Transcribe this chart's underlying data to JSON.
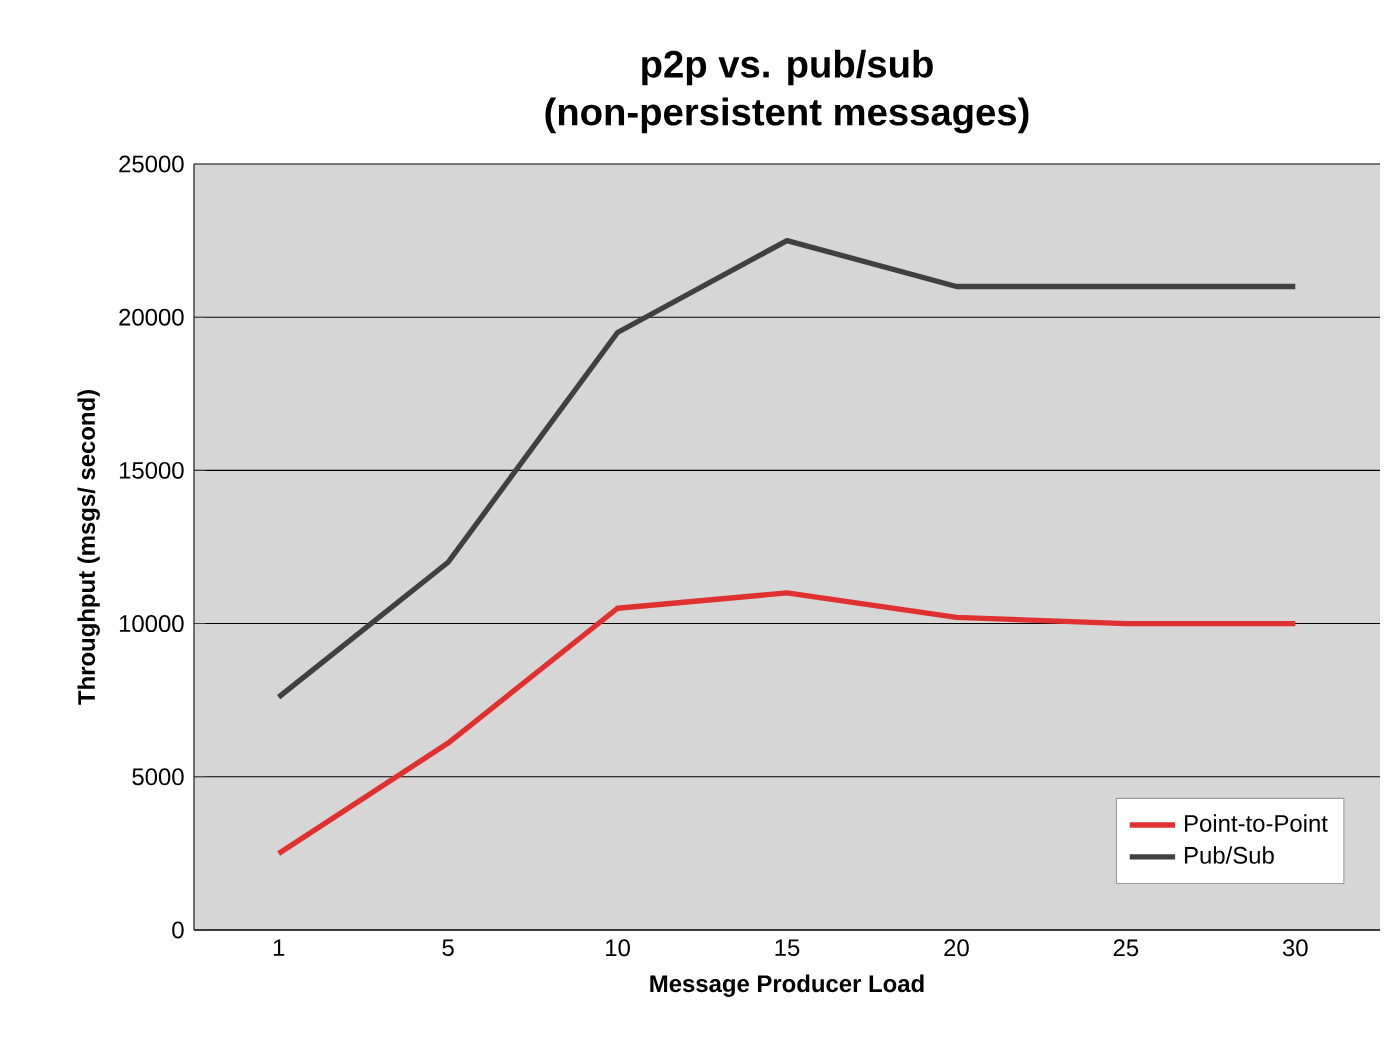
{
  "chart_data": {
    "type": "line",
    "title": "p2p vs. pub/sub",
    "subtitle": "(non-persistent messages)",
    "xlabel": "Message Producer Load",
    "ylabel": "Throughput (msgs/ second)",
    "categories": [
      "1",
      "5",
      "10",
      "15",
      "20",
      "25",
      "30"
    ],
    "series": [
      {
        "name": "Point-to-Point",
        "color": "#e03030",
        "values": [
          2500,
          6100,
          10500,
          11000,
          10200,
          10000,
          10000
        ]
      },
      {
        "name": "Pub/Sub",
        "color": "#404040",
        "values": [
          7600,
          12000,
          19500,
          22500,
          21000,
          21000,
          21000
        ]
      }
    ],
    "ylim": [
      0,
      25000
    ],
    "yticks": [
      0,
      5000,
      10000,
      15000,
      20000,
      25000
    ],
    "grid": "y",
    "legend": "bottom right",
    "marker": "none"
  }
}
